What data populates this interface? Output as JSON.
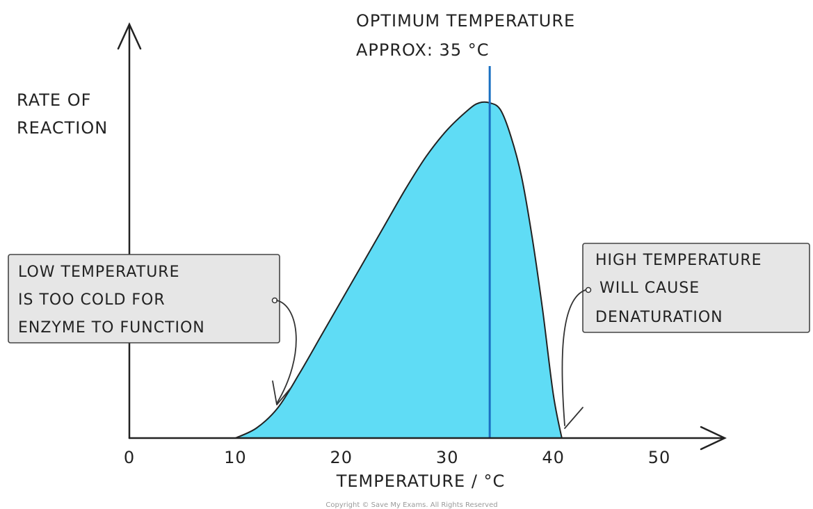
{
  "chart_data": {
    "type": "area",
    "title": "",
    "xlabel": "TEMPERATURE / °C",
    "ylabel_lines": [
      "RATE OF",
      "REACTION"
    ],
    "xlim": [
      0,
      50
    ],
    "ylim": [
      0,
      1
    ],
    "x_ticks": [
      0,
      10,
      20,
      30,
      40,
      50
    ],
    "y_ticks": [],
    "grid": false,
    "series": [
      {
        "x": [
          10,
          12,
          14,
          16,
          18,
          20,
          22,
          24,
          26,
          28,
          30,
          32,
          33,
          34,
          35,
          36,
          37,
          38,
          39,
          40,
          40.8
        ],
        "y": [
          0,
          0.03,
          0.09,
          0.19,
          0.3,
          0.41,
          0.52,
          0.63,
          0.74,
          0.84,
          0.92,
          0.98,
          1.0,
          1.0,
          0.98,
          0.9,
          0.78,
          0.6,
          0.38,
          0.13,
          0
        ]
      }
    ],
    "optimum": {
      "x": 34,
      "label_lines": [
        "OPTIMUM TEMPERATURE",
        "APPROX: 35 °C"
      ]
    },
    "annotations": [
      {
        "id": "low",
        "lines": [
          "LOW TEMPERATURE",
          "IS TOO COLD FOR",
          "ENZYME TO FUNCTION"
        ],
        "points_to_x": 14.5
      },
      {
        "id": "high",
        "lines": [
          "HIGH TEMPERATURE",
          "WILL CAUSE",
          "DENATURATION"
        ],
        "points_to_x": 40.7
      }
    ]
  },
  "colors": {
    "fill": "#5fdcf5",
    "curve": "#222222",
    "optimum_line": "#1a70c2",
    "callout_bg": "#e6e6e6"
  },
  "copyright": "Copyright © Save My Exams. All Rights Reserved"
}
